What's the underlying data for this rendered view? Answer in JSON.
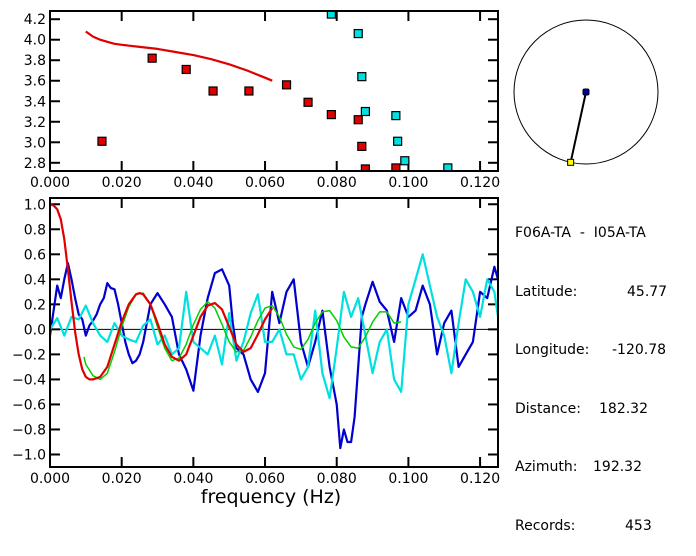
{
  "chart_data": [
    {
      "type": "scatter",
      "title": "",
      "xlabel": "",
      "ylabel": "",
      "xlim": [
        0.0,
        0.125
      ],
      "ylim": [
        2.72,
        4.28
      ],
      "x_ticks": [
        "0.000",
        "0.020",
        "0.040",
        "0.060",
        "0.080",
        "0.100",
        "0.120"
      ],
      "x_tick_values": [
        0.0,
        0.02,
        0.04,
        0.06,
        0.08,
        0.1,
        0.12
      ],
      "y_ticks": [
        "4.2",
        "4.0",
        "3.8",
        "3.6",
        "3.4",
        "3.2",
        "3.0",
        "2.8"
      ],
      "y_tick_values": [
        4.2,
        4.0,
        3.8,
        3.6,
        3.4,
        3.2,
        3.0,
        2.8
      ],
      "series": [
        {
          "name": "model-dispersion-curve",
          "kind": "line",
          "color": "#e00000",
          "x": [
            0.01,
            0.012,
            0.014,
            0.016,
            0.018,
            0.02,
            0.025,
            0.03,
            0.035,
            0.04,
            0.045,
            0.05,
            0.055,
            0.06,
            0.062
          ],
          "y": [
            4.08,
            4.03,
            4.0,
            3.98,
            3.96,
            3.95,
            3.93,
            3.91,
            3.88,
            3.85,
            3.81,
            3.76,
            3.7,
            3.63,
            3.6
          ]
        },
        {
          "name": "red-measurements",
          "kind": "markers",
          "color": "#e00000",
          "x": [
            0.0145,
            0.0285,
            0.038,
            0.0455,
            0.0555,
            0.066,
            0.072,
            0.0785,
            0.086,
            0.087,
            0.088,
            0.0965
          ],
          "y": [
            3.01,
            3.82,
            3.71,
            3.5,
            3.5,
            3.56,
            3.39,
            3.27,
            3.22,
            2.96,
            2.74,
            2.75
          ]
        },
        {
          "name": "cyan-measurements",
          "kind": "markers",
          "color": "#00e0e0",
          "x": [
            0.0785,
            0.086,
            0.087,
            0.088,
            0.0965,
            0.097,
            0.099,
            0.111
          ],
          "y": [
            4.25,
            4.06,
            3.64,
            3.3,
            3.26,
            3.01,
            2.82,
            2.75
          ]
        }
      ]
    },
    {
      "type": "line",
      "title": "",
      "xlabel": "frequency (Hz)",
      "ylabel": "",
      "xlim": [
        0.0,
        0.125
      ],
      "ylim": [
        -1.1,
        1.05
      ],
      "x_ticks": [
        "0.000",
        "0.020",
        "0.040",
        "0.060",
        "0.080",
        "0.100",
        "0.120"
      ],
      "x_tick_values": [
        0.0,
        0.02,
        0.04,
        0.06,
        0.08,
        0.1,
        0.12
      ],
      "y_ticks": [
        "1.0",
        "0.8",
        "0.6",
        "0.4",
        "0.2",
        "0.0",
        "-0.2",
        "-0.4",
        "-0.6",
        "-0.8",
        "-1.0"
      ],
      "y_tick_values": [
        1.0,
        0.8,
        0.6,
        0.4,
        0.2,
        0.0,
        -0.2,
        -0.4,
        -0.6,
        -0.8,
        -1.0
      ],
      "zero_line": true,
      "series": [
        {
          "name": "observed-real",
          "color": "#0000d0",
          "x": [
            0.0,
            0.001,
            0.002,
            0.003,
            0.004,
            0.005,
            0.006,
            0.007,
            0.008,
            0.009,
            0.01,
            0.011,
            0.012,
            0.013,
            0.014,
            0.015,
            0.016,
            0.017,
            0.018,
            0.019,
            0.02,
            0.021,
            0.022,
            0.023,
            0.024,
            0.025,
            0.026,
            0.027,
            0.028,
            0.03,
            0.032,
            0.034,
            0.036,
            0.038,
            0.04,
            0.042,
            0.044,
            0.046,
            0.048,
            0.05,
            0.051,
            0.052,
            0.054,
            0.056,
            0.058,
            0.06,
            0.062,
            0.064,
            0.066,
            0.068,
            0.07,
            0.072,
            0.074,
            0.076,
            0.078,
            0.08,
            0.081,
            0.082,
            0.083,
            0.084,
            0.085,
            0.086,
            0.087,
            0.088,
            0.09,
            0.092,
            0.094,
            0.096,
            0.098,
            0.1,
            0.102,
            0.104,
            0.106,
            0.108,
            0.11,
            0.112,
            0.114,
            0.116,
            0.118,
            0.12,
            0.122,
            0.124,
            0.125
          ],
          "y": [
            -0.05,
            0.15,
            0.35,
            0.25,
            0.4,
            0.53,
            0.4,
            0.25,
            0.12,
            0.08,
            -0.05,
            0.03,
            0.07,
            0.12,
            0.2,
            0.25,
            0.37,
            0.33,
            0.32,
            0.2,
            0.05,
            -0.1,
            -0.2,
            -0.27,
            -0.25,
            -0.2,
            -0.1,
            0.05,
            0.2,
            0.29,
            0.2,
            0.1,
            -0.2,
            -0.32,
            -0.49,
            -0.05,
            0.25,
            0.45,
            0.48,
            0.35,
            0.05,
            -0.15,
            -0.2,
            -0.4,
            -0.5,
            -0.35,
            0.3,
            0.05,
            0.3,
            0.4,
            -0.1,
            -0.3,
            -0.1,
            0.15,
            -0.3,
            -0.6,
            -0.95,
            -0.8,
            -0.9,
            -0.9,
            -0.7,
            -0.3,
            0.1,
            0.2,
            0.38,
            0.22,
            0.15,
            -0.1,
            0.25,
            0.1,
            0.15,
            0.35,
            0.2,
            -0.2,
            0.05,
            0.15,
            -0.3,
            -0.2,
            -0.1,
            0.3,
            0.25,
            0.5,
            0.4
          ]
        },
        {
          "name": "observed-imag",
          "color": "#00e0e0",
          "x": [
            0.0,
            0.002,
            0.004,
            0.006,
            0.008,
            0.01,
            0.012,
            0.014,
            0.016,
            0.018,
            0.02,
            0.022,
            0.024,
            0.026,
            0.028,
            0.03,
            0.032,
            0.034,
            0.036,
            0.038,
            0.04,
            0.042,
            0.044,
            0.046,
            0.048,
            0.05,
            0.052,
            0.054,
            0.056,
            0.058,
            0.06,
            0.062,
            0.064,
            0.066,
            0.068,
            0.07,
            0.072,
            0.074,
            0.076,
            0.078,
            0.08,
            0.082,
            0.084,
            0.086,
            0.088,
            0.09,
            0.092,
            0.094,
            0.096,
            0.098,
            0.1,
            0.102,
            0.104,
            0.106,
            0.108,
            0.11,
            0.112,
            0.114,
            0.116,
            0.118,
            0.12,
            0.122,
            0.124,
            0.125
          ],
          "y": [
            0.0,
            0.09,
            -0.05,
            0.1,
            0.08,
            0.19,
            0.05,
            -0.05,
            -0.1,
            0.05,
            -0.05,
            -0.08,
            -0.1,
            0.03,
            0.08,
            -0.12,
            -0.05,
            -0.2,
            -0.15,
            0.3,
            -0.1,
            -0.15,
            -0.2,
            -0.05,
            -0.28,
            0.13,
            -0.25,
            -0.1,
            0.13,
            0.28,
            -0.1,
            -0.1,
            0.0,
            -0.2,
            -0.2,
            -0.4,
            -0.3,
            0.15,
            -0.35,
            -0.55,
            -0.15,
            0.3,
            0.1,
            0.25,
            -0.05,
            -0.35,
            -0.1,
            0.0,
            -0.4,
            -0.5,
            0.2,
            0.4,
            0.6,
            0.35,
            0.1,
            -0.05,
            -0.35,
            0.05,
            0.4,
            0.3,
            0.1,
            0.4,
            0.3,
            0.1
          ]
        },
        {
          "name": "model-green",
          "color": "#00d000",
          "x": [
            0.0095,
            0.01,
            0.012,
            0.014,
            0.016,
            0.018,
            0.02,
            0.022,
            0.024,
            0.026,
            0.028,
            0.03,
            0.032,
            0.034,
            0.036,
            0.038,
            0.04,
            0.042,
            0.044,
            0.046,
            0.048,
            0.05,
            0.052,
            0.054,
            0.056,
            0.058,
            0.06,
            0.062,
            0.064,
            0.066,
            0.068,
            0.07,
            0.072,
            0.074,
            0.076,
            0.078,
            0.08,
            0.082,
            0.084,
            0.086,
            0.088,
            0.09,
            0.092,
            0.094,
            0.096,
            0.098
          ],
          "y": [
            -0.22,
            -0.28,
            -0.37,
            -0.4,
            -0.35,
            -0.18,
            0.02,
            0.18,
            0.28,
            0.29,
            0.2,
            0.02,
            -0.15,
            -0.25,
            -0.23,
            -0.12,
            0.04,
            0.16,
            0.22,
            0.17,
            0.04,
            -0.1,
            -0.18,
            -0.17,
            -0.06,
            0.07,
            0.17,
            0.19,
            0.1,
            -0.04,
            -0.14,
            -0.16,
            -0.08,
            0.05,
            0.14,
            0.15,
            0.07,
            -0.06,
            -0.14,
            -0.15,
            -0.06,
            0.06,
            0.14,
            0.14,
            0.05,
            0.06
          ]
        },
        {
          "name": "model-red",
          "color": "#e00000",
          "x": [
            0.0,
            0.001,
            0.002,
            0.003,
            0.004,
            0.005,
            0.006,
            0.007,
            0.008,
            0.009,
            0.01,
            0.011,
            0.012,
            0.013,
            0.014,
            0.016,
            0.018,
            0.02,
            0.022,
            0.024,
            0.025,
            0.026,
            0.028,
            0.03,
            0.032,
            0.034,
            0.036,
            0.038,
            0.04,
            0.042,
            0.044,
            0.046,
            0.048,
            0.05,
            0.052,
            0.054,
            0.056,
            0.058,
            0.06,
            0.062
          ],
          "y": [
            1.0,
            0.99,
            0.96,
            0.88,
            0.72,
            0.48,
            0.22,
            -0.02,
            -0.2,
            -0.32,
            -0.38,
            -0.4,
            -0.4,
            -0.39,
            -0.38,
            -0.3,
            -0.12,
            0.06,
            0.2,
            0.28,
            0.29,
            0.28,
            0.2,
            0.05,
            -0.12,
            -0.22,
            -0.25,
            -0.2,
            -0.05,
            0.1,
            0.19,
            0.21,
            0.16,
            0.02,
            -0.12,
            -0.18,
            -0.15,
            -0.04,
            0.08,
            0.17
          ]
        }
      ]
    }
  ],
  "map_inset": {
    "center_station_color": "#0000a0",
    "other_station_color": "#ffff00",
    "azimuth_deg": 192.32
  },
  "info": {
    "pair": "F06A-TA  -  I05A-TA",
    "rows": [
      {
        "label": "Latitude:",
        "value": "45.77"
      },
      {
        "label": "Longitude:",
        "value": "-120.78"
      },
      {
        "label": "Distance:",
        "value": "182.32"
      },
      {
        "label": "Azimuth:",
        "value": "192.32"
      },
      {
        "label": "Records:",
        "value": "453"
      }
    ]
  }
}
